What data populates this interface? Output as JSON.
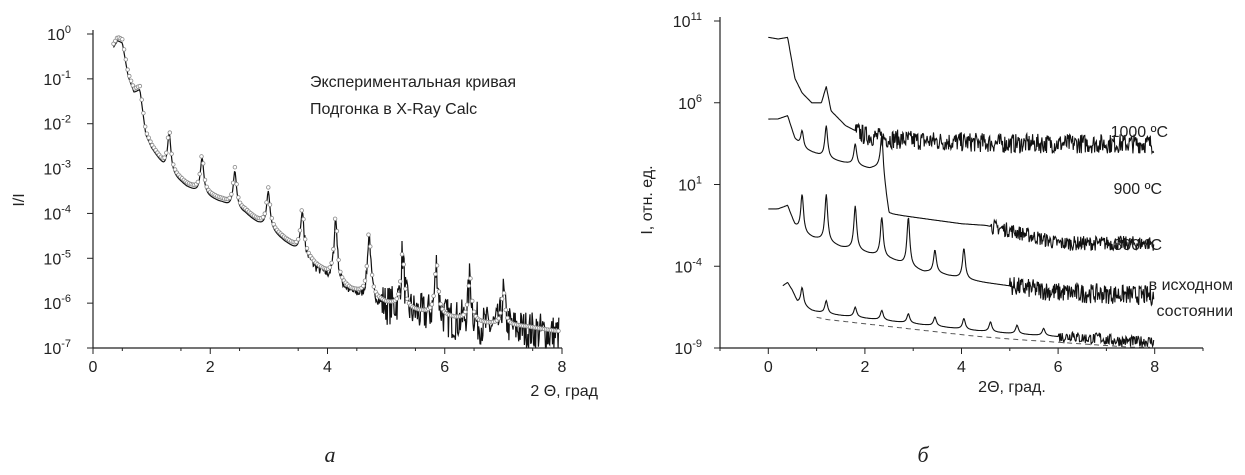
{
  "chart_data": [
    {
      "id": "a",
      "type": "line",
      "caption": "а",
      "xlabel": "2 Θ, град",
      "ylabel": "I/I",
      "xlim": [
        0,
        8
      ],
      "ylim_exp": [
        -7,
        0
      ],
      "yscale": "log",
      "xticks": [
        0,
        2,
        4,
        6,
        8
      ],
      "yticks": [
        "10^0",
        "10^-1",
        "10^-2",
        "10^-3",
        "10^-4",
        "10^-5",
        "10^-6",
        "10^-7"
      ],
      "legend": [
        "Экспериментальная кривая",
        "Подгонка в X-Ray Calc"
      ],
      "series": [
        {
          "name": "Экспериментальная кривая",
          "style": "line",
          "x": [
            0.35,
            0.42,
            0.5,
            0.6,
            0.7,
            0.8,
            0.9,
            1.0,
            1.1,
            1.2,
            1.3,
            1.4,
            1.6,
            1.8,
            2.0,
            2.2,
            2.4,
            2.6,
            2.8,
            3.0,
            3.2,
            3.4,
            3.6,
            3.8,
            4.0,
            4.2,
            4.4,
            4.6,
            4.8,
            5.0,
            5.4,
            5.8,
            6.2,
            6.6,
            7.0,
            7.4,
            7.9
          ],
          "log10y": [
            -0.3,
            -0.15,
            -0.2,
            -0.95,
            -1.3,
            -1.25,
            -2.25,
            -2.55,
            -2.75,
            -2.95,
            -3.1,
            -3.2,
            -3.4,
            -3.55,
            -3.65,
            -3.75,
            -3.9,
            -4.0,
            -4.2,
            -4.35,
            -4.55,
            -4.75,
            -4.95,
            -5.2,
            -5.4,
            -5.6,
            -5.75,
            -5.85,
            -5.95,
            -6.05,
            -6.2,
            -6.3,
            -6.4,
            -6.5,
            -6.55,
            -6.6,
            -6.7
          ]
        },
        {
          "name": "Подгонка в X-Ray Calc",
          "style": "circles",
          "x": [
            0.35,
            0.42,
            0.5,
            0.6,
            0.7,
            0.8,
            0.9,
            1.0,
            1.1,
            1.2,
            1.3,
            1.4,
            1.6,
            1.8,
            2.0,
            2.2,
            2.4,
            2.6,
            2.8,
            3.0,
            3.2,
            3.4,
            3.6,
            3.8,
            4.0,
            4.2,
            4.4,
            4.6,
            4.8,
            5.0,
            5.4,
            5.8,
            6.2,
            6.6,
            7.0,
            7.4,
            7.9
          ],
          "log10y": [
            -0.3,
            -0.15,
            -0.2,
            -0.95,
            -1.3,
            -1.25,
            -2.25,
            -2.55,
            -2.75,
            -2.95,
            -3.1,
            -3.2,
            -3.4,
            -3.55,
            -3.65,
            -3.75,
            -3.9,
            -4.0,
            -4.2,
            -4.35,
            -4.55,
            -4.75,
            -4.95,
            -5.2,
            -5.4,
            -5.6,
            -5.75,
            -5.85,
            -5.95,
            -6.05,
            -6.2,
            -6.3,
            -6.4,
            -6.5,
            -6.55,
            -6.6,
            -6.7
          ]
        }
      ],
      "peaks": [
        {
          "x": 0.78,
          "log10y": -1.25
        },
        {
          "x": 1.3,
          "log10y": -2.2
        },
        {
          "x": 1.86,
          "log10y": -2.75
        },
        {
          "x": 2.42,
          "log10y": -3.05
        },
        {
          "x": 2.99,
          "log10y": -3.5
        },
        {
          "x": 3.57,
          "log10y": -3.95
        },
        {
          "x": 4.14,
          "log10y": -4.1
        },
        {
          "x": 4.71,
          "log10y": -4.45
        },
        {
          "x": 5.28,
          "log10y": -4.9
        },
        {
          "x": 5.86,
          "log10y": -5.15
        },
        {
          "x": 6.43,
          "log10y": -5.45
        },
        {
          "x": 7.0,
          "log10y": -5.8
        }
      ]
    },
    {
      "id": "b",
      "type": "line",
      "caption": "б",
      "xlabel": "2Θ, град.",
      "ylabel": "I, отн. ед.",
      "xlim": [
        -1,
        9
      ],
      "ylim_exp": [
        -9,
        11
      ],
      "yscale": "log",
      "xticks": [
        0,
        2,
        4,
        6,
        8
      ],
      "yticks": [
        "10^11",
        "10^6",
        "10^1",
        "10^-4",
        "10^-9"
      ],
      "series": [
        {
          "name": "1000 ºС",
          "x": [
            0,
            0.2,
            0.4,
            0.55,
            0.7,
            0.9,
            1.1,
            1.2,
            1.3,
            1.6,
            2.0,
            2.5,
            3.0,
            4.0,
            5.0,
            6.0,
            7.0,
            8.0
          ],
          "log10y": [
            10,
            9.9,
            10,
            7.5,
            6.6,
            6.0,
            6.0,
            7.0,
            5.5,
            4.6,
            4.0,
            3.8,
            3.7,
            3.6,
            3.5,
            3.5,
            3.5,
            3.5
          ],
          "peaks": []
        },
        {
          "name": "900 ºС",
          "x": [
            0,
            0.2,
            0.4,
            0.55,
            0.7,
            0.9,
            1.2,
            1.5,
            1.8,
            2.1,
            2.35,
            2.5,
            3.0,
            3.5,
            4.0,
            4.5,
            5.0,
            5.5,
            6.0,
            7.0,
            8.0
          ],
          "log10y": [
            5,
            5,
            5.2,
            3.8,
            3.2,
            3.0,
            2.6,
            2.4,
            2.2,
            2.0,
            2.1,
            -0.8,
            -1.0,
            -1.2,
            -1.4,
            -1.5,
            -1.8,
            -2.2,
            -2.6,
            -2.6,
            -2.6
          ],
          "peaks": [
            {
              "x": 0.7,
              "log10y": 4.3
            },
            {
              "x": 1.2,
              "log10y": 4.6
            },
            {
              "x": 1.8,
              "log10y": 3.5
            },
            {
              "x": 2.35,
              "log10y": 4.0
            }
          ]
        },
        {
          "name": "800 ºС",
          "x": [
            0,
            0.2,
            0.4,
            0.55,
            0.7,
            0.9,
            1.2,
            1.5,
            1.8,
            2.1,
            2.35,
            2.6,
            2.9,
            3.2,
            3.5,
            3.8,
            4.1,
            4.5,
            5.0,
            5.5,
            6.0,
            7.0,
            8.0
          ],
          "log10y": [
            -0.5,
            -0.5,
            -0.3,
            -1.5,
            -2.0,
            -2.2,
            -2.5,
            -2.8,
            -3.0,
            -3.2,
            -3.4,
            -3.6,
            -4.0,
            -4.3,
            -4.4,
            -4.6,
            -4.8,
            -5.0,
            -5.2,
            -5.4,
            -5.6,
            -5.7,
            -5.8
          ],
          "peaks": [
            {
              "x": 0.7,
              "log10y": 0.4
            },
            {
              "x": 1.2,
              "log10y": 0.4
            },
            {
              "x": 1.8,
              "log10y": -0.3
            },
            {
              "x": 2.35,
              "log10y": -1.0
            },
            {
              "x": 2.9,
              "log10y": -1.0
            },
            {
              "x": 3.45,
              "log10y": -3.0
            },
            {
              "x": 4.05,
              "log10y": -2.9
            }
          ]
        },
        {
          "name": "в исходном состоянии",
          "x": [
            0.3,
            0.4,
            0.5,
            0.6,
            0.7,
            0.9,
            1.2,
            1.5,
            1.8,
            2.1,
            2.4,
            2.7,
            3.0,
            3.3,
            3.6,
            3.9,
            4.2,
            4.6,
            5.0,
            5.5,
            6.0,
            6.5,
            7.0,
            7.5,
            8.0
          ],
          "log10y": [
            -5.2,
            -5.0,
            -5.5,
            -6.2,
            -6.4,
            -6.7,
            -6.9,
            -7.0,
            -7.1,
            -7.2,
            -7.3,
            -7.4,
            -7.5,
            -7.6,
            -7.7,
            -7.8,
            -7.9,
            -8.0,
            -8.1,
            -8.2,
            -8.3,
            -8.4,
            -8.5,
            -8.6,
            -8.6
          ],
          "peaks": [
            {
              "x": 0.7,
              "log10y": -5.3
            },
            {
              "x": 1.2,
              "log10y": -6.1
            },
            {
              "x": 1.8,
              "log10y": -6.5
            },
            {
              "x": 2.35,
              "log10y": -6.7
            },
            {
              "x": 2.9,
              "log10y": -6.9
            },
            {
              "x": 3.45,
              "log10y": -7.1
            },
            {
              "x": 4.05,
              "log10y": -7.2
            },
            {
              "x": 4.6,
              "log10y": -7.4
            },
            {
              "x": 5.15,
              "log10y": -7.6
            },
            {
              "x": 5.7,
              "log10y": -7.8
            },
            {
              "x": 6.3,
              "log10y": -8.1
            },
            {
              "x": 6.85,
              "log10y": -8.3
            }
          ]
        }
      ]
    }
  ],
  "panel_b_labels": [
    "1000 ºС",
    "900 ºС",
    "800 ºС",
    "в исходном",
    "состоянии"
  ]
}
